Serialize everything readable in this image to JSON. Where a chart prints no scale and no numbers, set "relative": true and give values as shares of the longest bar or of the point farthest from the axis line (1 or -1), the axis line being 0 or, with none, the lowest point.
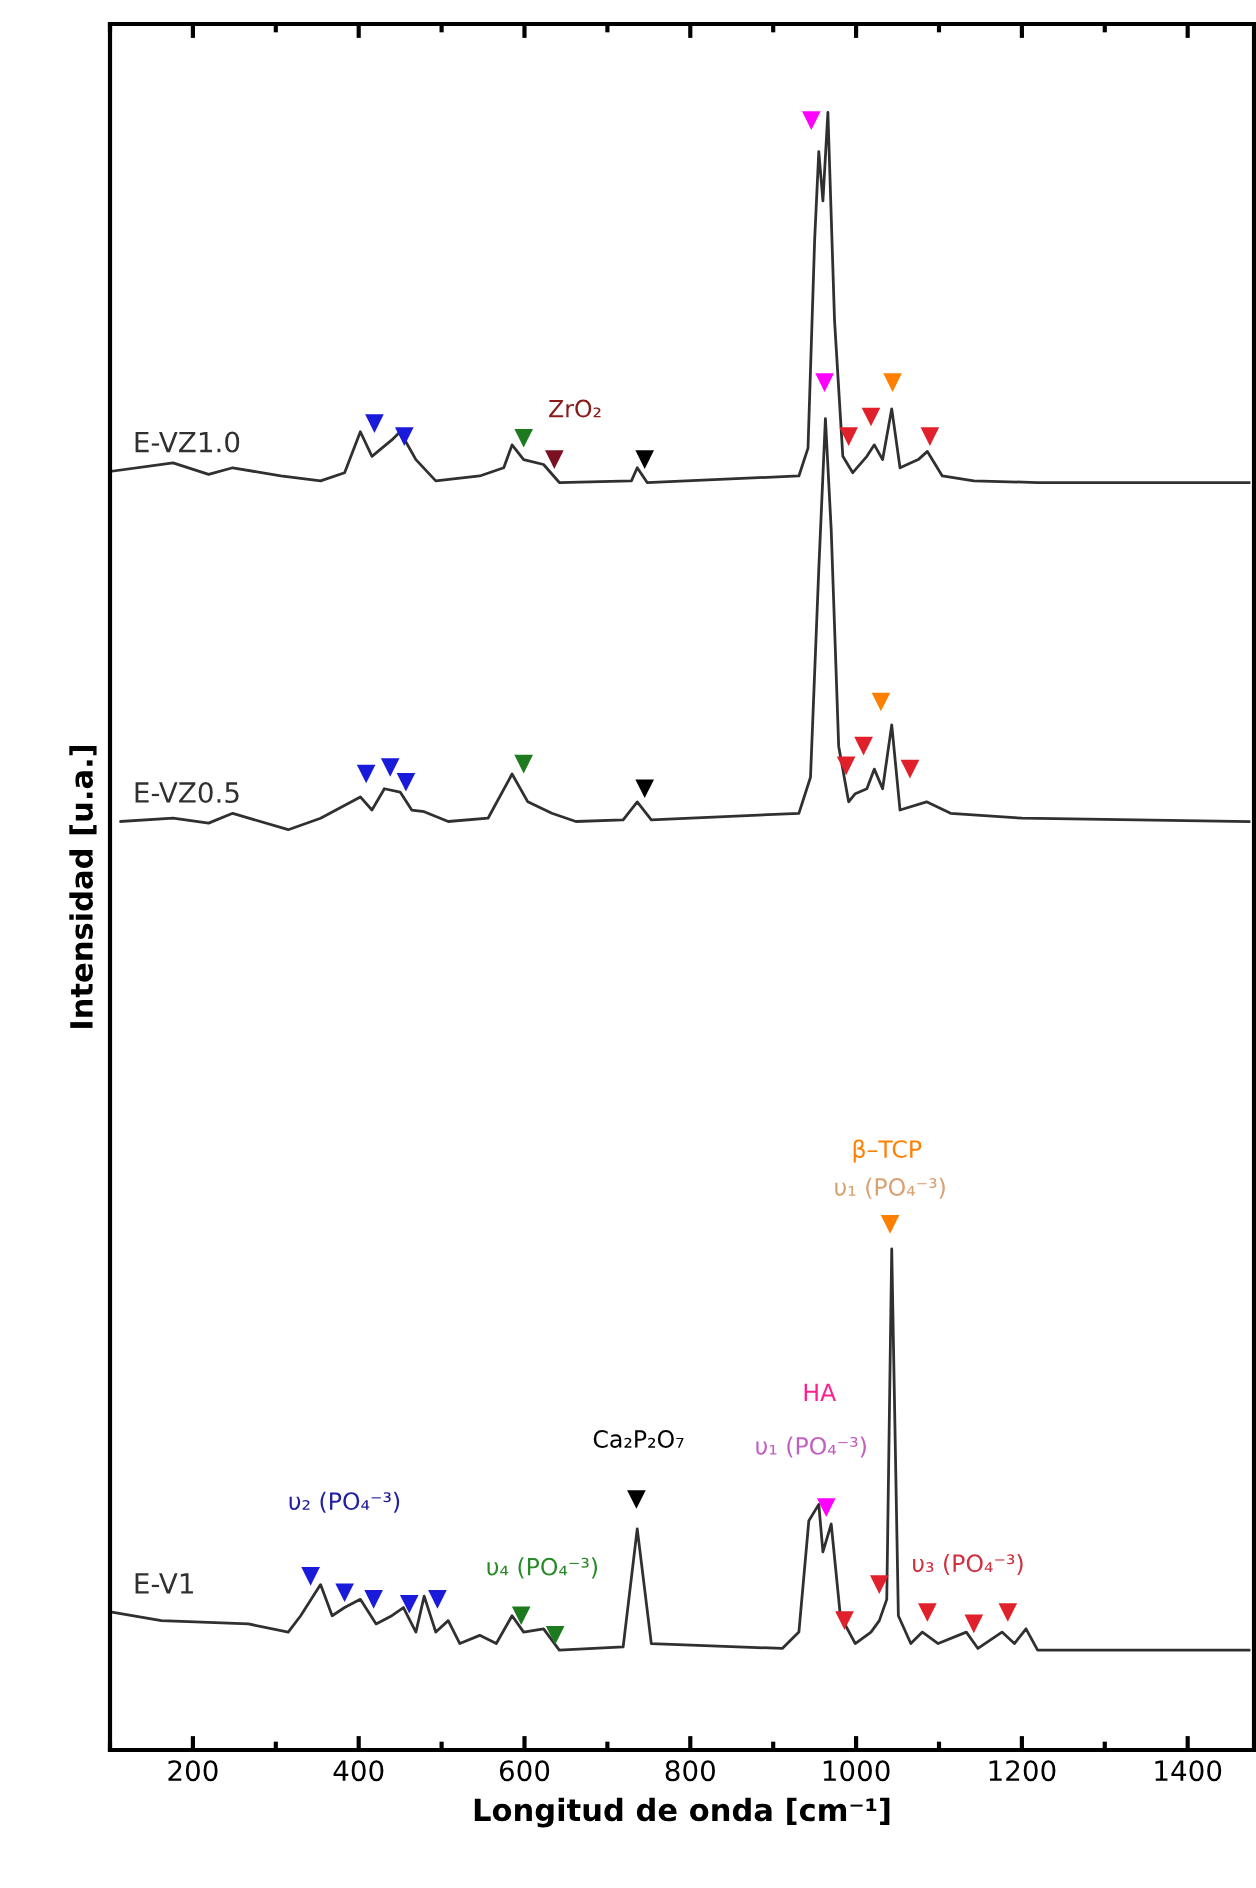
{
  "chart_data": {
    "type": "line",
    "relative": true,
    "xlabel": "Longitud de onda [cm⁻¹]",
    "ylabel": "Intensidad [u.a.]",
    "xlim": [
      100,
      1480
    ],
    "xticks": [
      {
        "value": 100,
        "label": null
      },
      200,
      {
        "value": 300,
        "label": null
      },
      400,
      {
        "value": 500,
        "label": null
      },
      600,
      {
        "value": 700,
        "label": null
      },
      800,
      {
        "value": 900,
        "label": null
      },
      1000,
      {
        "value": 1100,
        "label": null
      },
      1200,
      {
        "value": 1300,
        "label": null
      },
      1400
    ],
    "grid": false,
    "legend": false,
    "marker": "none",
    "line_style": "solid",
    "series": [
      {
        "name": "E-VZ1.0",
        "color": "#303030",
        "x": [
          104,
          176,
          219,
          248,
          306,
          354,
          383,
          402,
          416,
          440,
          450,
          469,
          493,
          546,
          575,
          585,
          599,
          623,
          642,
          729,
          736,
          748,
          931,
          942,
          950,
          955,
          960,
          966,
          974,
          984,
          996,
          1013,
          1022,
          1032,
          1043,
          1053,
          1075,
          1086,
          1104,
          1142,
          1219,
          1474
        ],
        "values": [
          0.781,
          0.786,
          0.779,
          0.783,
          0.778,
          0.775,
          0.78,
          0.805,
          0.79,
          0.8,
          0.805,
          0.788,
          0.775,
          0.778,
          0.783,
          0.797,
          0.788,
          0.785,
          0.774,
          0.775,
          0.783,
          0.774,
          0.778,
          0.795,
          0.922,
          0.976,
          0.946,
          1.0,
          0.873,
          0.79,
          0.78,
          0.79,
          0.797,
          0.788,
          0.819,
          0.783,
          0.788,
          0.793,
          0.778,
          0.775,
          0.774,
          0.774
        ]
      },
      {
        "name": "E-VZ0.5",
        "color": "#303030",
        "x": [
          113,
          176,
          219,
          248,
          315,
          354,
          402,
          416,
          431,
          450,
          464,
          479,
          508,
          556,
          585,
          604,
          633,
          662,
          719,
          736,
          753,
          931,
          945,
          955,
          963,
          970,
          979,
          991,
          999,
          1013,
          1022,
          1032,
          1043,
          1053,
          1085,
          1114,
          1200,
          1474
        ],
        "values": [
          0.567,
          0.569,
          0.566,
          0.572,
          0.562,
          0.569,
          0.582,
          0.574,
          0.587,
          0.585,
          0.574,
          0.573,
          0.567,
          0.569,
          0.596,
          0.579,
          0.572,
          0.567,
          0.568,
          0.579,
          0.568,
          0.572,
          0.594,
          0.721,
          0.813,
          0.745,
          0.613,
          0.579,
          0.584,
          0.587,
          0.599,
          0.587,
          0.626,
          0.574,
          0.579,
          0.572,
          0.569,
          0.567
        ]
      },
      {
        "name": "E-V1",
        "color": "#303030",
        "x": [
          104,
          162,
          267,
          315,
          330,
          354,
          368,
          383,
          402,
          421,
          440,
          454,
          469,
          479,
          493,
          508,
          522,
          546,
          566,
          585,
          599,
          623,
          642,
          719,
          736,
          753,
          911,
          931,
          943,
          955,
          960,
          970,
          981,
          999,
          1018,
          1028,
          1037,
          1043,
          1051,
          1066,
          1080,
          1099,
          1133,
          1147,
          1176,
          1191,
          1205,
          1219,
          1474
        ],
        "values": [
          0.084,
          0.079,
          0.077,
          0.072,
          0.082,
          0.101,
          0.082,
          0.087,
          0.092,
          0.077,
          0.082,
          0.087,
          0.072,
          0.094,
          0.072,
          0.079,
          0.065,
          0.07,
          0.065,
          0.082,
          0.072,
          0.074,
          0.061,
          0.063,
          0.135,
          0.065,
          0.062,
          0.072,
          0.14,
          0.15,
          0.121,
          0.138,
          0.082,
          0.065,
          0.072,
          0.079,
          0.092,
          0.306,
          0.082,
          0.065,
          0.072,
          0.065,
          0.072,
          0.062,
          0.072,
          0.065,
          0.074,
          0.061,
          0.061
        ]
      },
      {
        "type": "scatter",
        "marker": "triangle",
        "color": "#1a1adb",
        "x": [
          419,
          455,
          409,
          438,
          457,
          342,
          383,
          418,
          461,
          495
        ],
        "values": [
          0.81,
          0.802,
          0.596,
          0.6,
          0.591,
          0.106,
          0.096,
          0.092,
          0.089,
          0.092
        ]
      },
      {
        "type": "scatter",
        "marker": "triangle",
        "color": "#1e7a1e",
        "x": [
          599,
          599,
          596,
          637
        ],
        "values": [
          0.801,
          0.602,
          0.082,
          0.07
        ]
      },
      {
        "type": "scatter",
        "marker": "triangle",
        "color": "#7a1020",
        "x": [
          636
        ],
        "values": [
          0.788
        ]
      },
      {
        "type": "scatter",
        "marker": "triangle",
        "color": "#000000",
        "x": [
          745,
          745,
          735
        ],
        "values": [
          0.788,
          0.587,
          0.153
        ]
      },
      {
        "type": "scatter",
        "marker": "triangle",
        "color": "#ff00ff",
        "x": [
          946,
          962,
          964
        ],
        "values": [
          0.995,
          0.835,
          0.148
        ]
      },
      {
        "type": "scatter",
        "marker": "triangle",
        "color": "#e0202a",
        "x": [
          991,
          1018,
          1089,
          988,
          1009,
          1065,
          986,
          1028,
          1086,
          1142,
          1183
        ],
        "values": [
          0.802,
          0.814,
          0.802,
          0.601,
          0.613,
          0.599,
          0.079,
          0.101,
          0.084,
          0.077,
          0.084
        ]
      },
      {
        "type": "scatter",
        "marker": "triangle",
        "color": "#ff8000",
        "x": [
          1044,
          1030,
          1041
        ],
        "values": [
          0.835,
          0.64,
          0.321
        ]
      }
    ],
    "annotations": [
      "ZrO₂",
      "β–TCP",
      "υ₁ (PO₄⁻³)",
      "Ca₂P₂O₇",
      "HA",
      "υ₁ (PO₄⁻³)",
      "υ₂ (PO₄⁻³)",
      "υ₄ (PO₄⁻³)",
      "υ₃ (PO₄⁻³)"
    ]
  }
}
